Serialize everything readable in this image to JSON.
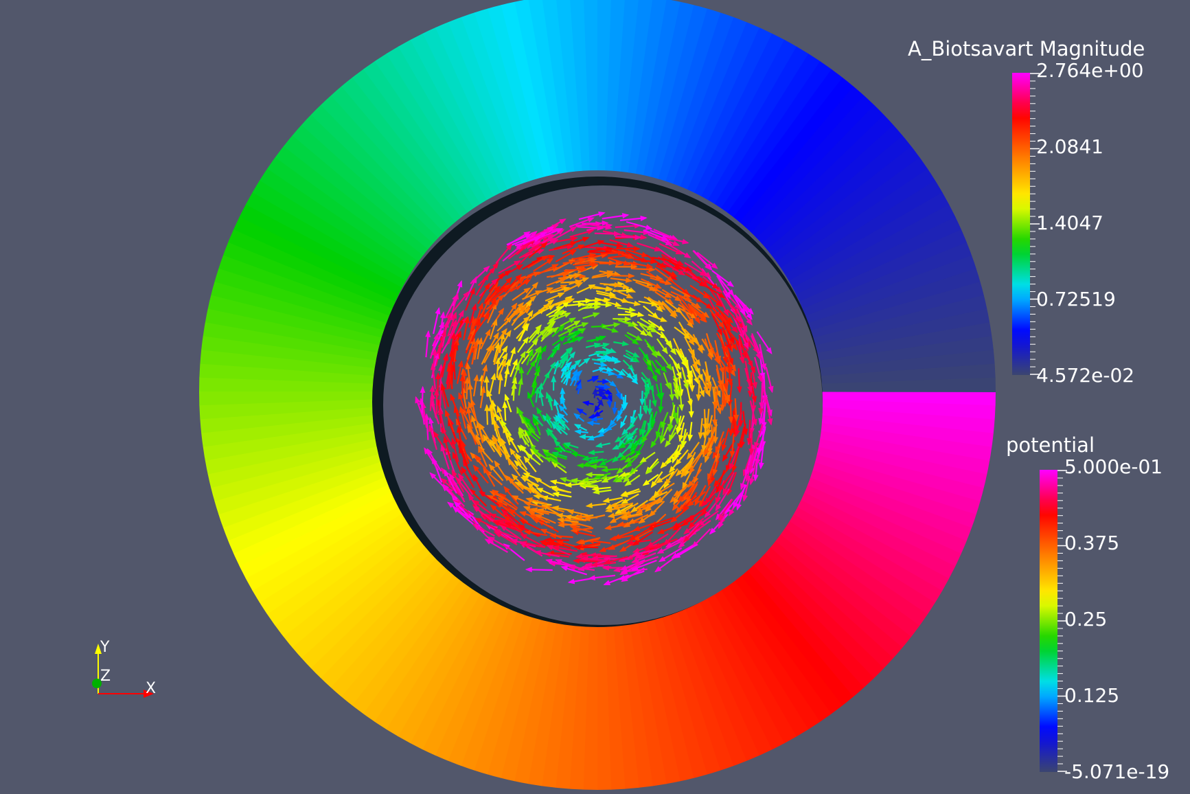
{
  "render_view": {
    "background_color": "#52576b"
  },
  "colormap": [
    "#3b4570",
    "#0000ff",
    "#00e0ff",
    "#00d000",
    "#ffff00",
    "#ff8000",
    "#ff0000",
    "#ff00ff"
  ],
  "legends": {
    "biotsavart": {
      "title": "A_Biotsavart Magnitude",
      "ticks": [
        "2.764e+00",
        "2.0841",
        "1.4047",
        "0.72519",
        "4.572e-02"
      ],
      "range": [
        0.04572,
        2.764
      ]
    },
    "potential": {
      "title": "potential",
      "ticks": [
        "5.000e-01",
        "0.375",
        "0.25",
        "0.125",
        "-5.071e-19"
      ],
      "range": [
        -5.071e-19,
        0.5
      ]
    }
  },
  "orientation_axes": {
    "x_label": "X",
    "y_label": "Y",
    "z_label": "Z",
    "x_color": "#ff0000",
    "y_color": "#ffff00",
    "z_color": "#00ff00"
  },
  "icons": {
    "orientation": "axes-triad-icon"
  }
}
